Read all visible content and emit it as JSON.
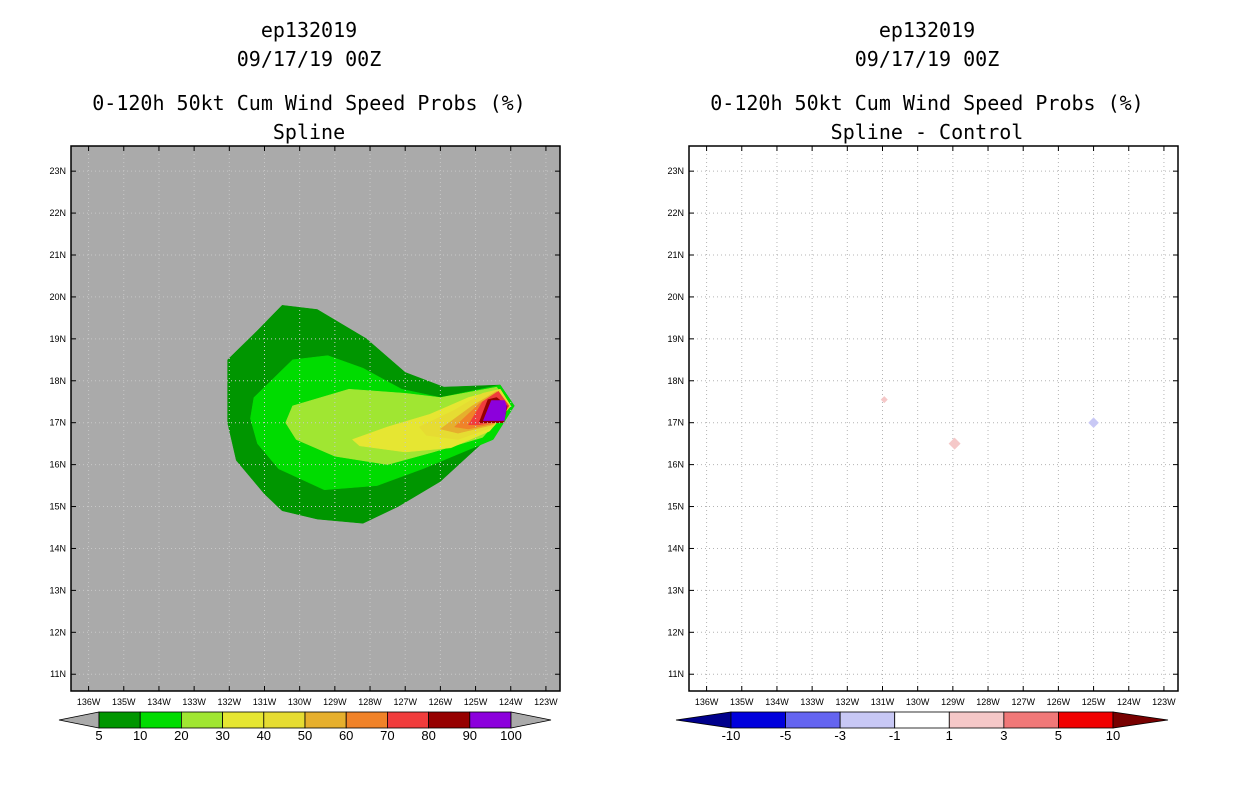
{
  "left": {
    "title_line1": "ep132019",
    "title_line2": "09/17/19 00Z",
    "title_line3": "0-120h 50kt Cum Wind Speed Probs (%)",
    "title_line4": "Spline"
  },
  "right": {
    "title_line1": "ep132019",
    "title_line2": "09/17/19 00Z",
    "title_line3": "0-120h 50kt Cum Wind Speed Probs (%)",
    "title_line4": "Spline - Control"
  },
  "chart_data": [
    {
      "type": "heatmap",
      "panel": "left",
      "title": "0-120h 50kt Cum Wind Speed Probs (%)",
      "subtitle": "Spline",
      "xlabel": "",
      "ylabel": "",
      "x_ticks": [
        "136W",
        "135W",
        "134W",
        "133W",
        "132W",
        "131W",
        "130W",
        "129W",
        "128W",
        "127W",
        "126W",
        "125W",
        "124W",
        "123W"
      ],
      "y_ticks": [
        "11N",
        "12N",
        "13N",
        "14N",
        "15N",
        "16N",
        "17N",
        "18N",
        "19N",
        "20N",
        "21N",
        "22N",
        "23N"
      ],
      "xlim": [
        -136.5,
        -122.6
      ],
      "ylim": [
        10.6,
        23.6
      ],
      "background_color": "#aaaaaa",
      "colorbar": {
        "labels": [
          "5",
          "10",
          "20",
          "30",
          "40",
          "50",
          "60",
          "70",
          "80",
          "90",
          "100"
        ],
        "colors": [
          "#009600",
          "#00dc00",
          "#a0e632",
          "#e6e632",
          "#e6dc32",
          "#e6af2d",
          "#f08228",
          "#f03c3c",
          "#960000",
          "#8c00dc"
        ],
        "end_color": "#aaaaaa"
      },
      "contours": [
        {
          "level": 5,
          "color": "#009600",
          "polygon": [
            [
              -132.05,
              18.5
            ],
            [
              -131.2,
              19.2
            ],
            [
              -130.5,
              19.8
            ],
            [
              -129.5,
              19.7
            ],
            [
              -128.1,
              19.0
            ],
            [
              -127.0,
              18.2
            ],
            [
              -125.9,
              17.85
            ],
            [
              -124.3,
              17.9
            ],
            [
              -123.9,
              17.4
            ],
            [
              -124.7,
              16.6
            ],
            [
              -126.0,
              15.6
            ],
            [
              -127.2,
              15.0
            ],
            [
              -128.2,
              14.6
            ],
            [
              -129.5,
              14.7
            ],
            [
              -130.5,
              14.9
            ],
            [
              -131.0,
              15.3
            ],
            [
              -131.8,
              16.1
            ],
            [
              -132.05,
              17.0
            ]
          ]
        },
        {
          "level": 10,
          "color": "#00dc00",
          "polygon": [
            [
              -131.3,
              17.6
            ],
            [
              -130.2,
              18.5
            ],
            [
              -129.2,
              18.6
            ],
            [
              -128.2,
              18.3
            ],
            [
              -127.1,
              17.8
            ],
            [
              -126.0,
              17.6
            ],
            [
              -124.3,
              17.9
            ],
            [
              -123.9,
              17.4
            ],
            [
              -124.5,
              16.6
            ],
            [
              -126.5,
              15.9
            ],
            [
              -127.8,
              15.5
            ],
            [
              -129.3,
              15.4
            ],
            [
              -130.6,
              15.9
            ],
            [
              -131.2,
              16.5
            ],
            [
              -131.4,
              17.1
            ]
          ]
        },
        {
          "level": 20,
          "color": "#a0e632",
          "polygon": [
            [
              -130.2,
              17.4
            ],
            [
              -128.6,
              17.8
            ],
            [
              -127.0,
              17.7
            ],
            [
              -126.0,
              17.6
            ],
            [
              -124.4,
              17.85
            ],
            [
              -124.0,
              17.4
            ],
            [
              -124.8,
              16.65
            ],
            [
              -126.2,
              16.3
            ],
            [
              -127.5,
              16.0
            ],
            [
              -129.0,
              16.2
            ],
            [
              -130.1,
              16.6
            ],
            [
              -130.4,
              17.0
            ]
          ]
        },
        {
          "level": 30,
          "color": "#e6e632",
          "polygon": [
            [
              -128.5,
              16.6
            ],
            [
              -127.5,
              16.9
            ],
            [
              -126.3,
              17.2
            ],
            [
              -125.2,
              17.6
            ],
            [
              -124.3,
              17.8
            ],
            [
              -124.0,
              17.4
            ],
            [
              -124.6,
              16.8
            ],
            [
              -125.7,
              16.4
            ],
            [
              -127.0,
              16.3
            ],
            [
              -128.3,
              16.45
            ]
          ]
        },
        {
          "level": 40,
          "color": "#e6dc32",
          "polygon": [
            [
              -126.6,
              16.9
            ],
            [
              -125.6,
              17.3
            ],
            [
              -124.8,
              17.7
            ],
            [
              -124.3,
              17.8
            ],
            [
              -124.0,
              17.4
            ],
            [
              -124.5,
              16.9
            ],
            [
              -125.5,
              16.6
            ],
            [
              -126.4,
              16.7
            ]
          ]
        },
        {
          "level": 50,
          "color": "#e6af2d",
          "polygon": [
            [
              -126.0,
              16.85
            ],
            [
              -125.1,
              17.4
            ],
            [
              -124.4,
              17.75
            ],
            [
              -124.05,
              17.4
            ],
            [
              -124.5,
              16.95
            ],
            [
              -125.5,
              16.75
            ]
          ]
        },
        {
          "level": 60,
          "color": "#f08228",
          "polygon": [
            [
              -125.6,
              16.9
            ],
            [
              -124.9,
              17.45
            ],
            [
              -124.35,
              17.75
            ],
            [
              -124.05,
              17.4
            ],
            [
              -124.4,
              17.0
            ],
            [
              -125.2,
              16.85
            ]
          ]
        },
        {
          "level": 70,
          "color": "#f03c3c",
          "polygon": [
            [
              -125.2,
              16.95
            ],
            [
              -124.8,
              17.5
            ],
            [
              -124.35,
              17.75
            ],
            [
              -124.05,
              17.4
            ],
            [
              -124.3,
              17.05
            ],
            [
              -124.9,
              16.95
            ]
          ]
        },
        {
          "level": 80,
          "color": "#960000",
          "polygon": [
            [
              -124.9,
              17.0
            ],
            [
              -124.65,
              17.55
            ],
            [
              -124.4,
              17.6
            ],
            [
              -124.1,
              17.4
            ],
            [
              -124.2,
              17.0
            ]
          ]
        },
        {
          "level": 90,
          "color": "#8c00dc",
          "polygon": [
            [
              -124.78,
              17.05
            ],
            [
              -124.55,
              17.53
            ],
            [
              -124.18,
              17.53
            ],
            [
              -124.12,
              17.4
            ],
            [
              -124.18,
              17.05
            ]
          ]
        }
      ]
    },
    {
      "type": "heatmap",
      "panel": "right",
      "title": "0-120h 50kt Cum Wind Speed Probs (%)",
      "subtitle": "Spline - Control",
      "xlabel": "",
      "ylabel": "",
      "x_ticks": [
        "136W",
        "135W",
        "134W",
        "133W",
        "132W",
        "131W",
        "130W",
        "129W",
        "128W",
        "127W",
        "126W",
        "125W",
        "124W",
        "123W"
      ],
      "y_ticks": [
        "11N",
        "12N",
        "13N",
        "14N",
        "15N",
        "16N",
        "17N",
        "18N",
        "19N",
        "20N",
        "21N",
        "22N",
        "23N"
      ],
      "xlim": [
        -136.5,
        -122.6
      ],
      "ylim": [
        10.6,
        23.6
      ],
      "grid": true,
      "colorbar": {
        "labels": [
          "-10",
          "-5",
          "-3",
          "-1",
          "1",
          "3",
          "5",
          "10"
        ],
        "colors": [
          "#0000dc",
          "#6464f0",
          "#c8c8f5",
          "#ffffff",
          "#f5c8c8",
          "#f07878",
          "#f00000"
        ],
        "low_end_color": "#00008c",
        "high_end_color": "#780000"
      },
      "diffs": [
        {
          "lon": -130.95,
          "lat": 17.55,
          "value": 2,
          "color": "#f5c8c8",
          "half_width_deg": 0.1
        },
        {
          "lon": -128.95,
          "lat": 16.5,
          "value": 2,
          "color": "#f5c8c8",
          "half_width_deg": 0.17
        },
        {
          "lon": -125.0,
          "lat": 17.0,
          "value": -2,
          "color": "#c8c8f5",
          "half_width_deg": 0.15
        }
      ]
    }
  ]
}
